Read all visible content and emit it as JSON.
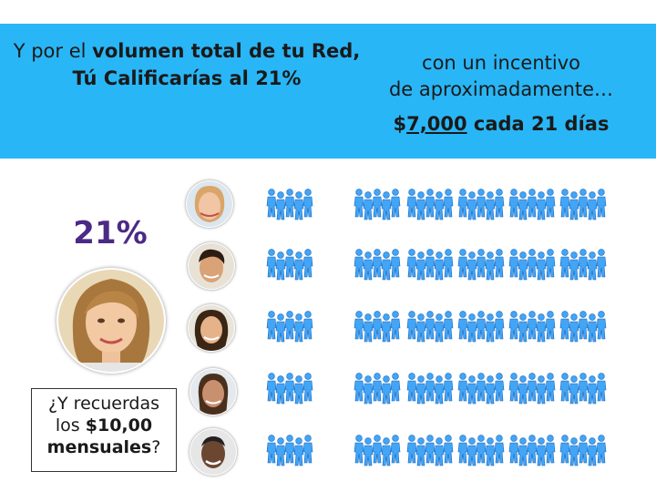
{
  "header": {
    "line1_pre": "Y por el ",
    "line1_bold": "volumen total de tu Red,",
    "line2": "Tú Calificarías al 21%",
    "right_line1": "con un incentivo",
    "right_line2": "de aproximadamente…",
    "amount_symbol": "$",
    "amount_value": "7,000",
    "amount_rest": " cada 21 días"
  },
  "percent_label": "21%",
  "reminder": {
    "line1": "¿Y recuerdas",
    "line2_pre": "los ",
    "line2_bold": "$10,00",
    "line3_bold": "mensuales",
    "line3_post": "?"
  },
  "colors": {
    "banner": "#29b6f6",
    "percent": "#4b2a86",
    "people": "#42a5f5"
  },
  "icons": {
    "people": "people-group-icon",
    "face": "person-face-icon"
  }
}
